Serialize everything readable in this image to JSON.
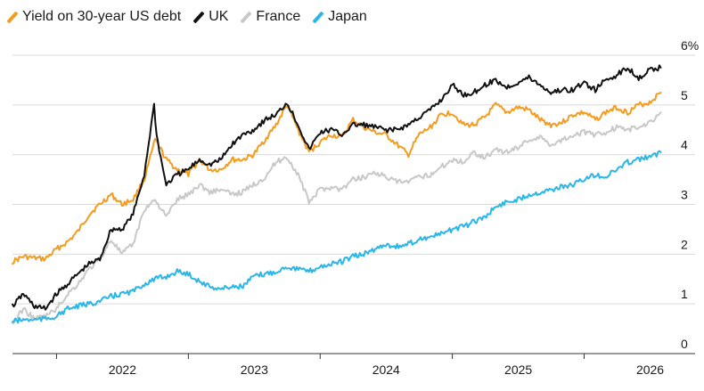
{
  "chart_data": {
    "type": "line",
    "title": "",
    "xlabel": "",
    "ylabel": "",
    "legend_title": "Yield on 30-year US debt",
    "legend_position": "top-left",
    "y_unit_suffix": "%",
    "ylim": [
      0,
      6
    ],
    "y_ticks": [
      0,
      1,
      2,
      3,
      4,
      5,
      6
    ],
    "y_tick_labels": [
      "0",
      "1",
      "2",
      "3",
      "4",
      "5",
      "6%"
    ],
    "xlim": [
      "2021-09-01",
      "2026-09-01"
    ],
    "x_ticks": [
      "2022-01-01",
      "2023-01-01",
      "2024-01-01",
      "2025-01-01",
      "2026-01-01"
    ],
    "x_tick_labels": [
      "2022",
      "2023",
      "2024",
      "2025",
      "2026"
    ],
    "grid": "horizontal",
    "series": [
      {
        "name": "",
        "color": "#f39c1f",
        "points": [
          [
            "2021-09-01",
            1.85
          ],
          [
            "2021-10-01",
            1.95
          ],
          [
            "2021-11-01",
            1.92
          ],
          [
            "2021-12-01",
            1.9
          ],
          [
            "2022-01-01",
            2.1
          ],
          [
            "2022-02-01",
            2.25
          ],
          [
            "2022-03-01",
            2.45
          ],
          [
            "2022-04-01",
            2.8
          ],
          [
            "2022-05-01",
            3.0
          ],
          [
            "2022-06-01",
            3.2
          ],
          [
            "2022-07-01",
            3.0
          ],
          [
            "2022-08-01",
            3.1
          ],
          [
            "2022-09-01",
            3.5
          ],
          [
            "2022-10-01",
            4.3
          ],
          [
            "2022-11-01",
            3.9
          ],
          [
            "2022-12-01",
            3.7
          ],
          [
            "2023-01-01",
            3.6
          ],
          [
            "2023-02-01",
            3.9
          ],
          [
            "2023-03-01",
            3.7
          ],
          [
            "2023-04-01",
            3.7
          ],
          [
            "2023-05-01",
            3.9
          ],
          [
            "2023-06-01",
            3.9
          ],
          [
            "2023-07-01",
            4.0
          ],
          [
            "2023-08-01",
            4.3
          ],
          [
            "2023-09-01",
            4.6
          ],
          [
            "2023-10-01",
            5.0
          ],
          [
            "2023-11-01",
            4.5
          ],
          [
            "2023-12-01",
            4.05
          ],
          [
            "2024-01-01",
            4.25
          ],
          [
            "2024-02-01",
            4.4
          ],
          [
            "2024-03-01",
            4.35
          ],
          [
            "2024-04-01",
            4.7
          ],
          [
            "2024-05-01",
            4.55
          ],
          [
            "2024-06-01",
            4.45
          ],
          [
            "2024-07-01",
            4.4
          ],
          [
            "2024-08-01",
            4.2
          ],
          [
            "2024-09-01",
            4.0
          ],
          [
            "2024-10-01",
            4.4
          ],
          [
            "2024-11-01",
            4.55
          ],
          [
            "2024-12-01",
            4.8
          ],
          [
            "2025-01-01",
            4.85
          ],
          [
            "2025-02-01",
            4.6
          ],
          [
            "2025-03-01",
            4.6
          ],
          [
            "2025-04-01",
            4.75
          ],
          [
            "2025-05-01",
            5.0
          ],
          [
            "2025-06-01",
            4.85
          ],
          [
            "2025-07-01",
            4.95
          ],
          [
            "2025-08-01",
            4.9
          ],
          [
            "2025-09-01",
            4.7
          ],
          [
            "2025-10-01",
            4.6
          ],
          [
            "2025-11-01",
            4.65
          ],
          [
            "2025-12-01",
            4.8
          ],
          [
            "2026-01-01",
            4.85
          ],
          [
            "2026-02-01",
            4.7
          ],
          [
            "2026-03-01",
            4.85
          ],
          [
            "2026-04-01",
            4.95
          ],
          [
            "2026-05-01",
            4.85
          ],
          [
            "2026-06-01",
            5.0
          ],
          [
            "2026-07-01",
            5.05
          ],
          [
            "2026-08-01",
            5.25
          ]
        ]
      },
      {
        "name": "UK",
        "color": "#111111",
        "points": [
          [
            "2021-09-01",
            0.95
          ],
          [
            "2021-10-01",
            1.2
          ],
          [
            "2021-11-01",
            0.95
          ],
          [
            "2021-12-01",
            0.9
          ],
          [
            "2022-01-01",
            1.2
          ],
          [
            "2022-02-01",
            1.4
          ],
          [
            "2022-03-01",
            1.6
          ],
          [
            "2022-04-01",
            1.8
          ],
          [
            "2022-05-01",
            1.9
          ],
          [
            "2022-06-01",
            2.5
          ],
          [
            "2022-07-01",
            2.5
          ],
          [
            "2022-08-01",
            2.8
          ],
          [
            "2022-09-01",
            3.6
          ],
          [
            "2022-09-28",
            5.0
          ],
          [
            "2022-10-05",
            4.4
          ],
          [
            "2022-10-20",
            3.8
          ],
          [
            "2022-11-01",
            3.4
          ],
          [
            "2022-12-01",
            3.6
          ],
          [
            "2023-01-01",
            3.7
          ],
          [
            "2023-02-01",
            3.9
          ],
          [
            "2023-03-01",
            3.8
          ],
          [
            "2023-04-01",
            3.9
          ],
          [
            "2023-05-01",
            4.2
          ],
          [
            "2023-06-01",
            4.4
          ],
          [
            "2023-07-01",
            4.5
          ],
          [
            "2023-08-01",
            4.7
          ],
          [
            "2023-09-01",
            4.8
          ],
          [
            "2023-10-01",
            5.05
          ],
          [
            "2023-11-01",
            4.6
          ],
          [
            "2023-12-01",
            4.1
          ],
          [
            "2024-01-01",
            4.45
          ],
          [
            "2024-02-01",
            4.5
          ],
          [
            "2024-03-01",
            4.4
          ],
          [
            "2024-04-01",
            4.6
          ],
          [
            "2024-05-01",
            4.6
          ],
          [
            "2024-06-01",
            4.55
          ],
          [
            "2024-07-01",
            4.5
          ],
          [
            "2024-08-01",
            4.5
          ],
          [
            "2024-09-01",
            4.6
          ],
          [
            "2024-10-01",
            4.75
          ],
          [
            "2024-11-01",
            4.9
          ],
          [
            "2024-12-01",
            5.1
          ],
          [
            "2025-01-01",
            5.4
          ],
          [
            "2025-02-01",
            5.2
          ],
          [
            "2025-03-01",
            5.25
          ],
          [
            "2025-04-01",
            5.4
          ],
          [
            "2025-05-01",
            5.5
          ],
          [
            "2025-06-01",
            5.35
          ],
          [
            "2025-07-01",
            5.45
          ],
          [
            "2025-08-01",
            5.55
          ],
          [
            "2025-09-01",
            5.4
          ],
          [
            "2025-10-01",
            5.25
          ],
          [
            "2025-11-01",
            5.3
          ],
          [
            "2025-12-01",
            5.3
          ],
          [
            "2026-01-01",
            5.45
          ],
          [
            "2026-02-01",
            5.3
          ],
          [
            "2026-03-01",
            5.5
          ],
          [
            "2026-04-01",
            5.6
          ],
          [
            "2026-05-01",
            5.75
          ],
          [
            "2026-06-01",
            5.55
          ],
          [
            "2026-07-01",
            5.7
          ],
          [
            "2026-08-01",
            5.75
          ]
        ]
      },
      {
        "name": "France",
        "color": "#c8c8c8",
        "points": [
          [
            "2021-09-01",
            0.6
          ],
          [
            "2021-10-01",
            0.9
          ],
          [
            "2021-11-01",
            0.7
          ],
          [
            "2021-12-01",
            0.75
          ],
          [
            "2022-01-01",
            0.9
          ],
          [
            "2022-02-01",
            1.2
          ],
          [
            "2022-03-01",
            1.4
          ],
          [
            "2022-04-01",
            1.7
          ],
          [
            "2022-05-01",
            1.9
          ],
          [
            "2022-06-01",
            2.3
          ],
          [
            "2022-07-01",
            2.0
          ],
          [
            "2022-08-01",
            2.2
          ],
          [
            "2022-09-01",
            2.9
          ],
          [
            "2022-10-01",
            3.1
          ],
          [
            "2022-11-01",
            2.75
          ],
          [
            "2022-12-01",
            3.1
          ],
          [
            "2023-01-01",
            3.2
          ],
          [
            "2023-02-01",
            3.4
          ],
          [
            "2023-03-01",
            3.25
          ],
          [
            "2023-04-01",
            3.3
          ],
          [
            "2023-05-01",
            3.2
          ],
          [
            "2023-06-01",
            3.25
          ],
          [
            "2023-07-01",
            3.4
          ],
          [
            "2023-08-01",
            3.55
          ],
          [
            "2023-09-01",
            3.85
          ],
          [
            "2023-10-01",
            3.95
          ],
          [
            "2023-11-01",
            3.6
          ],
          [
            "2023-12-01",
            3.05
          ],
          [
            "2024-01-01",
            3.3
          ],
          [
            "2024-02-01",
            3.35
          ],
          [
            "2024-03-01",
            3.3
          ],
          [
            "2024-04-01",
            3.5
          ],
          [
            "2024-05-01",
            3.55
          ],
          [
            "2024-06-01",
            3.65
          ],
          [
            "2024-07-01",
            3.55
          ],
          [
            "2024-08-01",
            3.45
          ],
          [
            "2024-09-01",
            3.45
          ],
          [
            "2024-10-01",
            3.55
          ],
          [
            "2024-11-01",
            3.6
          ],
          [
            "2024-12-01",
            3.75
          ],
          [
            "2025-01-01",
            3.9
          ],
          [
            "2025-02-01",
            3.85
          ],
          [
            "2025-03-01",
            4.05
          ],
          [
            "2025-04-01",
            3.95
          ],
          [
            "2025-05-01",
            4.1
          ],
          [
            "2025-06-01",
            4.05
          ],
          [
            "2025-07-01",
            4.15
          ],
          [
            "2025-08-01",
            4.3
          ],
          [
            "2025-09-01",
            4.35
          ],
          [
            "2025-10-01",
            4.2
          ],
          [
            "2025-11-01",
            4.3
          ],
          [
            "2025-12-01",
            4.4
          ],
          [
            "2026-01-01",
            4.45
          ],
          [
            "2026-02-01",
            4.4
          ],
          [
            "2026-03-01",
            4.45
          ],
          [
            "2026-04-01",
            4.55
          ],
          [
            "2026-05-01",
            4.5
          ],
          [
            "2026-06-01",
            4.55
          ],
          [
            "2026-07-01",
            4.65
          ],
          [
            "2026-08-01",
            4.85
          ]
        ]
      },
      {
        "name": "Japan",
        "color": "#29b6e8",
        "points": [
          [
            "2021-09-01",
            0.65
          ],
          [
            "2021-10-01",
            0.68
          ],
          [
            "2021-11-01",
            0.68
          ],
          [
            "2021-12-01",
            0.7
          ],
          [
            "2022-01-01",
            0.75
          ],
          [
            "2022-02-01",
            0.9
          ],
          [
            "2022-03-01",
            0.95
          ],
          [
            "2022-04-01",
            1.0
          ],
          [
            "2022-05-01",
            1.05
          ],
          [
            "2022-06-01",
            1.15
          ],
          [
            "2022-07-01",
            1.2
          ],
          [
            "2022-08-01",
            1.25
          ],
          [
            "2022-09-01",
            1.4
          ],
          [
            "2022-10-01",
            1.5
          ],
          [
            "2022-11-01",
            1.55
          ],
          [
            "2022-12-01",
            1.65
          ],
          [
            "2023-01-01",
            1.6
          ],
          [
            "2023-02-01",
            1.45
          ],
          [
            "2023-03-01",
            1.35
          ],
          [
            "2023-04-01",
            1.3
          ],
          [
            "2023-05-01",
            1.35
          ],
          [
            "2023-06-01",
            1.35
          ],
          [
            "2023-07-01",
            1.55
          ],
          [
            "2023-08-01",
            1.6
          ],
          [
            "2023-09-01",
            1.65
          ],
          [
            "2023-10-01",
            1.75
          ],
          [
            "2023-11-01",
            1.7
          ],
          [
            "2023-12-01",
            1.65
          ],
          [
            "2024-01-01",
            1.75
          ],
          [
            "2024-02-01",
            1.8
          ],
          [
            "2024-03-01",
            1.85
          ],
          [
            "2024-04-01",
            1.95
          ],
          [
            "2024-05-01",
            2.0
          ],
          [
            "2024-06-01",
            2.1
          ],
          [
            "2024-07-01",
            2.2
          ],
          [
            "2024-08-01",
            2.15
          ],
          [
            "2024-09-01",
            2.2
          ],
          [
            "2024-10-01",
            2.3
          ],
          [
            "2024-11-01",
            2.35
          ],
          [
            "2024-12-01",
            2.4
          ],
          [
            "2025-01-01",
            2.5
          ],
          [
            "2025-02-01",
            2.55
          ],
          [
            "2025-03-01",
            2.65
          ],
          [
            "2025-04-01",
            2.75
          ],
          [
            "2025-05-01",
            2.95
          ],
          [
            "2025-06-01",
            3.05
          ],
          [
            "2025-07-01",
            3.1
          ],
          [
            "2025-08-01",
            3.2
          ],
          [
            "2025-09-01",
            3.25
          ],
          [
            "2025-10-01",
            3.3
          ],
          [
            "2025-11-01",
            3.35
          ],
          [
            "2025-12-01",
            3.4
          ],
          [
            "2026-01-01",
            3.5
          ],
          [
            "2026-02-01",
            3.6
          ],
          [
            "2026-03-01",
            3.55
          ],
          [
            "2026-04-01",
            3.7
          ],
          [
            "2026-05-01",
            3.85
          ],
          [
            "2026-06-01",
            3.9
          ],
          [
            "2026-07-01",
            3.95
          ],
          [
            "2026-08-01",
            4.05
          ]
        ]
      }
    ]
  }
}
